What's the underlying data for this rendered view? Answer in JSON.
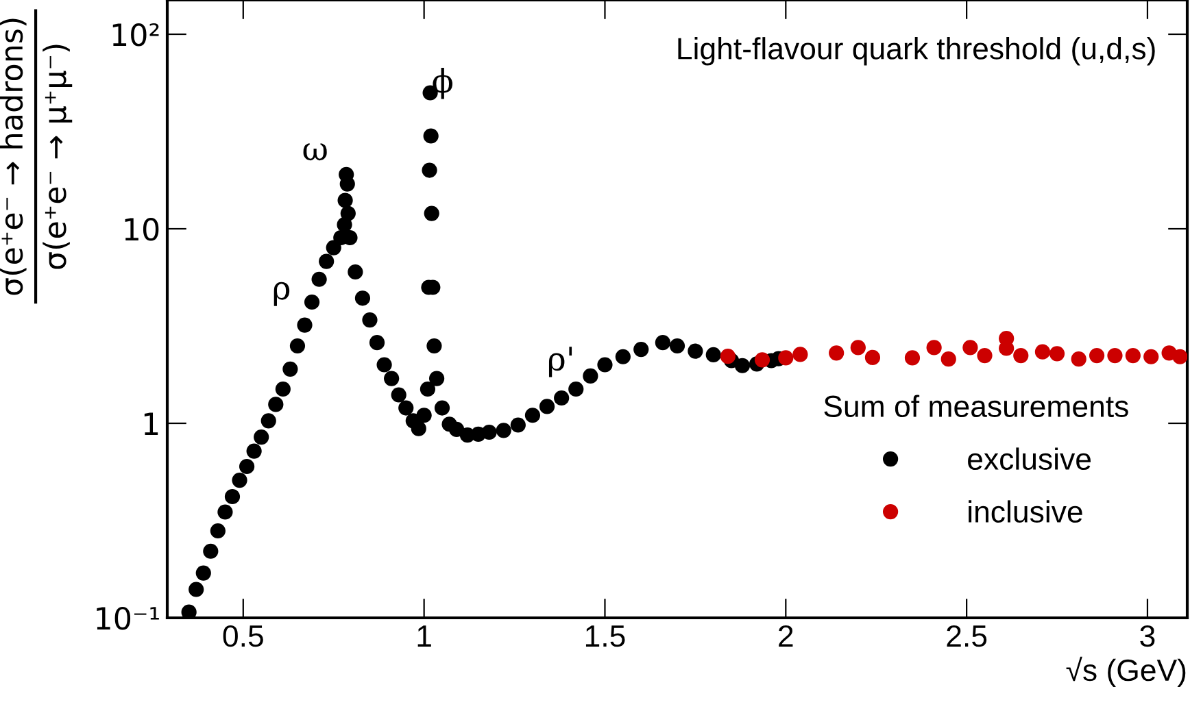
{
  "chart_data": {
    "type": "scatter",
    "title": "Light-flavour quark threshold (u,d,s)",
    "xlabel": "√s (GeV)",
    "ylabel": "σ(e⁺e⁻ → hadrons)\nσ(e⁺e⁻ → μ⁺μ⁻)",
    "legend_title": "Sum of measurements",
    "legend": "bottom right",
    "marker": "circle",
    "log": "y",
    "grid": false,
    "xlim": [
      0.29,
      3.11
    ],
    "xticks": [
      0.5,
      1,
      1.5,
      2,
      2.5,
      3
    ],
    "ylim": [
      0.1,
      150
    ],
    "yticks": [
      {
        "value": 0.1,
        "label": "10⁻¹"
      },
      1,
      10,
      {
        "value": 100,
        "label": "10²"
      }
    ],
    "annotations": [
      "ρ",
      "ω",
      "ϕ",
      "ρ'"
    ],
    "series": [
      {
        "name": "exclusive",
        "color": "#000000",
        "x": [
          0.35,
          0.37,
          0.39,
          0.41,
          0.43,
          0.45,
          0.47,
          0.49,
          0.51,
          0.53,
          0.55,
          0.57,
          0.59,
          0.61,
          0.63,
          0.65,
          0.67,
          0.69,
          0.71,
          0.73,
          0.75,
          0.77,
          0.78,
          0.782,
          0.785,
          0.788,
          0.79,
          0.795,
          0.81,
          0.83,
          0.85,
          0.87,
          0.89,
          0.91,
          0.93,
          0.95,
          0.97,
          0.985,
          1.0,
          1.01,
          1.013,
          1.015,
          1.017,
          1.019,
          1.021,
          1.024,
          1.028,
          1.035,
          1.05,
          1.07,
          1.09,
          1.12,
          1.15,
          1.18,
          1.22,
          1.26,
          1.3,
          1.34,
          1.38,
          1.42,
          1.46,
          1.5,
          1.55,
          1.6,
          1.66,
          1.7,
          1.75,
          1.8,
          1.85,
          1.88,
          1.92,
          1.96,
          1.98
        ],
        "values": [
          0.107,
          0.14,
          0.17,
          0.22,
          0.28,
          0.35,
          0.42,
          0.51,
          0.6,
          0.72,
          0.85,
          1.03,
          1.25,
          1.5,
          1.9,
          2.5,
          3.2,
          4.2,
          5.5,
          6.8,
          8.0,
          9.0,
          10.5,
          14,
          19,
          17,
          12,
          9.0,
          6.0,
          4.4,
          3.4,
          2.6,
          2.0,
          1.7,
          1.4,
          1.2,
          1.03,
          0.94,
          1.1,
          1.5,
          5,
          20,
          50,
          30,
          12,
          5,
          2.5,
          1.7,
          1.2,
          0.99,
          0.93,
          0.87,
          0.88,
          0.9,
          0.92,
          0.98,
          1.1,
          1.22,
          1.35,
          1.5,
          1.75,
          2.0,
          2.2,
          2.4,
          2.6,
          2.5,
          2.35,
          2.25,
          2.1,
          1.98,
          2.02,
          2.1,
          2.15
        ]
      },
      {
        "name": "inclusive",
        "color": "#cc0000",
        "x": [
          1.84,
          1.935,
          2.0,
          2.04,
          2.14,
          2.2,
          2.24,
          2.35,
          2.41,
          2.45,
          2.51,
          2.55,
          2.61,
          2.61,
          2.65,
          2.71,
          2.75,
          2.81,
          2.86,
          2.91,
          2.96,
          3.01,
          3.06,
          3.09
        ],
        "values": [
          2.21,
          2.12,
          2.17,
          2.26,
          2.3,
          2.45,
          2.18,
          2.17,
          2.45,
          2.14,
          2.45,
          2.23,
          2.73,
          2.43,
          2.23,
          2.33,
          2.28,
          2.14,
          2.23,
          2.23,
          2.23,
          2.2,
          2.3,
          2.2
        ]
      }
    ]
  }
}
